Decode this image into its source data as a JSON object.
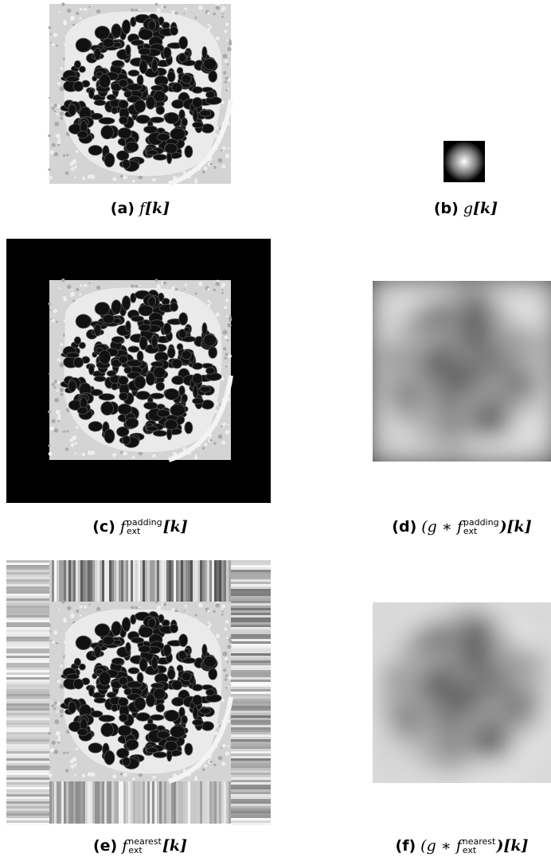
{
  "panels": [
    {
      "label": "(a)",
      "pre": "f",
      "post": "[k]"
    },
    {
      "label": "(b)",
      "pre": "g",
      "post": "[k]"
    },
    {
      "label": "(c)",
      "pre": "f",
      "sup": "padding",
      "sub": "ext",
      "post": "[k]"
    },
    {
      "label": "(d)",
      "pre": "(g ∗ f",
      "sup": "padding",
      "sub": "ext",
      "post": ")[k]"
    },
    {
      "label": "(e)",
      "pre": "f",
      "sup": "nearest",
      "sub": "ext",
      "post": "[k]"
    },
    {
      "label": "(f)",
      "pre": "(g ∗ f",
      "sup": "nearest",
      "sub": "ext",
      "post": ")[k]"
    }
  ]
}
